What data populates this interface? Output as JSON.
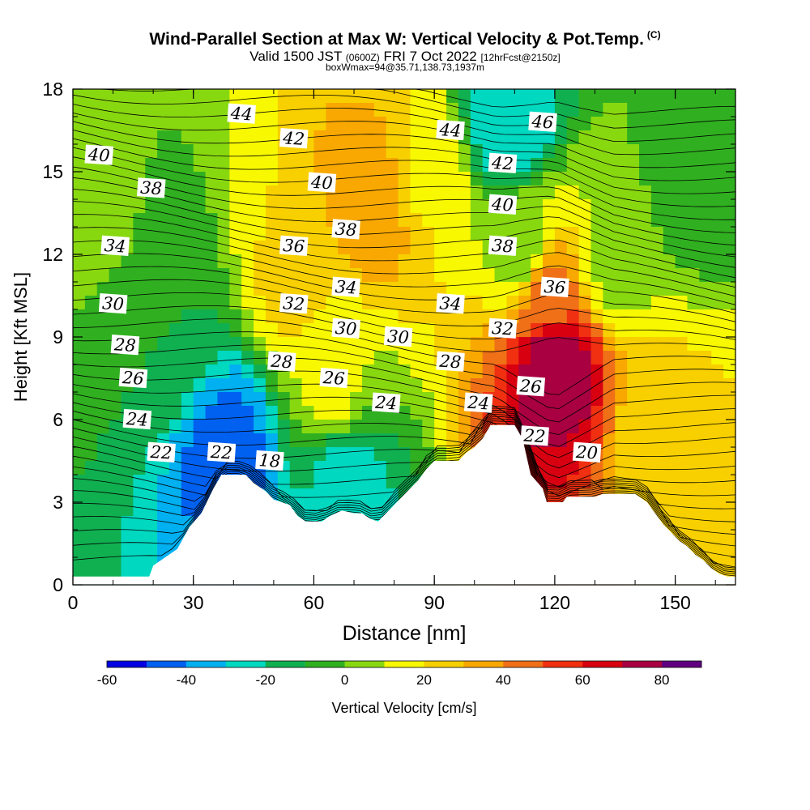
{
  "title": "Wind-Parallel Section at Max W: Vertical Velocity & Pot.Temp.",
  "title_mark": "(C)",
  "subtitle_main": "Valid 1500 JST",
  "subtitle_utc": "(0600Z)",
  "subtitle_date": "FRI 7 Oct 2022",
  "subtitle_fcst": "[12hrFcst@2150z]",
  "subtitle2": "boxWmax=94@35.71,138.73,1937m",
  "chart_data": {
    "type": "heatmap",
    "xlabel": "Distance [nm]",
    "ylabel": "Height [Kft MSL]",
    "xlim": [
      0,
      165
    ],
    "ylim": [
      0,
      18
    ],
    "xticks": [
      "0",
      "30",
      "60",
      "90",
      "120",
      "150"
    ],
    "yticks": [
      "0",
      "3",
      "6",
      "9",
      "12",
      "15",
      "18"
    ],
    "grid": false,
    "colorbar": {
      "label": "Vertical Velocity [cm/s]",
      "labels": [
        "-60",
        "-40",
        "-20",
        "0",
        "20",
        "40",
        "60",
        "80"
      ],
      "bounds": [
        -60,
        90
      ],
      "colors": [
        "#0000e0",
        "#0060f0",
        "#00b0f0",
        "#00d8c0",
        "#10b050",
        "#30b020",
        "#88d810",
        "#f8f800",
        "#f8d000",
        "#f8a800",
        "#f07018",
        "#f03010",
        "#d80010",
        "#a80040",
        "#600080"
      ]
    },
    "velocity_field": [
      {
        "x": 5,
        "y": 12,
        "w": 8
      },
      {
        "x": 12,
        "y": 10,
        "w": -10
      },
      {
        "x": 25,
        "y": 9,
        "w": -10
      },
      {
        "x": 38,
        "y": 5,
        "w": -45
      },
      {
        "x": 55,
        "y": 11,
        "w": 22
      },
      {
        "x": 65,
        "y": 7,
        "w": 12
      },
      {
        "x": 68,
        "y": 4,
        "w": -25
      },
      {
        "x": 75,
        "y": 14,
        "w": 38
      },
      {
        "x": 88,
        "y": 15,
        "w": 18
      },
      {
        "x": 108,
        "y": 17,
        "w": -30
      },
      {
        "x": 112,
        "y": 12,
        "w": 5
      },
      {
        "x": 120,
        "y": 8,
        "w": 80
      },
      {
        "x": 118,
        "y": 10.5,
        "w": 45
      },
      {
        "x": 135,
        "y": 12,
        "w": 5
      },
      {
        "x": 148,
        "y": 6,
        "w": 22
      },
      {
        "x": 155,
        "y": 15,
        "w": -10
      }
    ],
    "theta_labels": [
      {
        "v": "44",
        "x": 42,
        "y": 17.1
      },
      {
        "v": "42",
        "x": 55,
        "y": 16.2
      },
      {
        "v": "40",
        "x": 6.5,
        "y": 15.6
      },
      {
        "v": "44",
        "x": 94,
        "y": 16.5
      },
      {
        "v": "46",
        "x": 117,
        "y": 16.8
      },
      {
        "v": "38",
        "x": 19.5,
        "y": 14.4
      },
      {
        "v": "40",
        "x": 62,
        "y": 14.6
      },
      {
        "v": "42",
        "x": 107,
        "y": 15.3
      },
      {
        "v": "40",
        "x": 107,
        "y": 13.8
      },
      {
        "v": "38",
        "x": 68,
        "y": 12.9
      },
      {
        "v": "38",
        "x": 107,
        "y": 12.3
      },
      {
        "v": "34",
        "x": 10.5,
        "y": 12.3
      },
      {
        "v": "36",
        "x": 55,
        "y": 12.3
      },
      {
        "v": "36",
        "x": 120,
        "y": 10.8
      },
      {
        "v": "34",
        "x": 68,
        "y": 10.8
      },
      {
        "v": "32",
        "x": 55,
        "y": 10.2
      },
      {
        "v": "34",
        "x": 94,
        "y": 10.2
      },
      {
        "v": "30",
        "x": 10,
        "y": 10.2
      },
      {
        "v": "30",
        "x": 68,
        "y": 9.3
      },
      {
        "v": "30",
        "x": 81,
        "y": 9.0
      },
      {
        "v": "32",
        "x": 107,
        "y": 9.3
      },
      {
        "v": "28",
        "x": 13,
        "y": 8.7
      },
      {
        "v": "28",
        "x": 52,
        "y": 8.1
      },
      {
        "v": "28",
        "x": 94,
        "y": 8.1
      },
      {
        "v": "26",
        "x": 65,
        "y": 7.5
      },
      {
        "v": "26",
        "x": 15,
        "y": 7.5
      },
      {
        "v": "26",
        "x": 114,
        "y": 7.2
      },
      {
        "v": "24",
        "x": 78,
        "y": 6.6
      },
      {
        "v": "24",
        "x": 101,
        "y": 6.6
      },
      {
        "v": "24",
        "x": 16,
        "y": 6.0
      },
      {
        "v": "22",
        "x": 115,
        "y": 5.4
      },
      {
        "v": "22",
        "x": 22,
        "y": 4.8
      },
      {
        "v": "22",
        "x": 37,
        "y": 4.8
      },
      {
        "v": "20",
        "x": 128,
        "y": 4.8
      },
      {
        "v": "18",
        "x": 49,
        "y": 4.5
      }
    ]
  }
}
